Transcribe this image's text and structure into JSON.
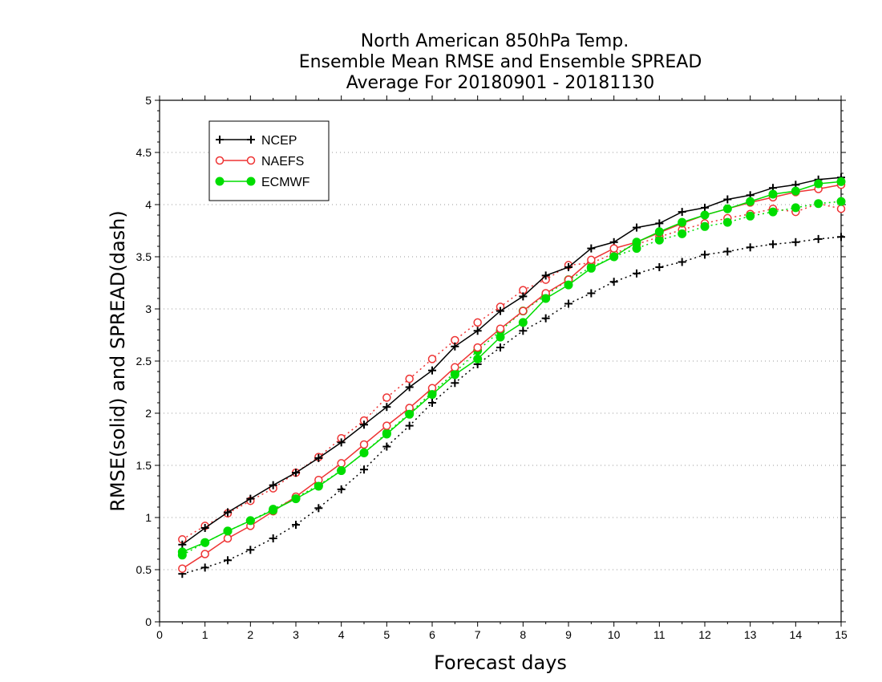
{
  "chart_data": {
    "type": "line",
    "title_lines": [
      "North American 850hPa Temp.",
      "Ensemble Mean RMSE and Ensemble SPREAD",
      "Average For 20180901 - 20181130"
    ],
    "xlabel": "Forecast days",
    "ylabel": "RMSE(solid) and SPREAD(dash)",
    "xlim": [
      0,
      15
    ],
    "ylim": [
      0,
      5
    ],
    "x_ticks": [
      "0",
      "1",
      "2",
      "3",
      "4",
      "5",
      "6",
      "7",
      "8",
      "9",
      "10",
      "11",
      "12",
      "13",
      "14",
      "15"
    ],
    "y_ticks": [
      "0",
      "0.5",
      "1",
      "1.5",
      "2",
      "2.5",
      "3",
      "3.5",
      "4",
      "4.5",
      "5"
    ],
    "grid": "horizontal dotted",
    "legend_position": "top-left",
    "x": [
      0.5,
      1,
      1.5,
      2,
      2.5,
      3,
      3.5,
      4,
      4.5,
      5,
      5.5,
      6,
      6.5,
      7,
      7.5,
      8,
      8.5,
      9,
      9.5,
      10,
      10.5,
      11,
      11.5,
      12,
      12.5,
      13,
      13.5,
      14,
      14.5,
      15
    ],
    "series": [
      {
        "name": "NCEP",
        "color": "#000000",
        "marker": "plus",
        "rmse": [
          0.74,
          0.9,
          1.05,
          1.18,
          1.31,
          1.43,
          1.57,
          1.72,
          1.89,
          2.06,
          2.25,
          2.41,
          2.64,
          2.79,
          2.98,
          3.12,
          3.32,
          3.4,
          3.58,
          3.64,
          3.78,
          3.82,
          3.93,
          3.97,
          4.05,
          4.09,
          4.16,
          4.19,
          4.24,
          4.26
        ],
        "spread": [
          0.46,
          0.52,
          0.59,
          0.69,
          0.8,
          0.93,
          1.09,
          1.27,
          1.46,
          1.68,
          1.88,
          2.1,
          2.29,
          2.47,
          2.63,
          2.79,
          2.91,
          3.05,
          3.15,
          3.26,
          3.34,
          3.4,
          3.45,
          3.52,
          3.55,
          3.59,
          3.62,
          3.64,
          3.67,
          3.69
        ]
      },
      {
        "name": "NAEFS",
        "color": "#ee3333",
        "marker": "open-circle",
        "rmse": [
          0.51,
          0.65,
          0.8,
          0.92,
          1.06,
          1.2,
          1.36,
          1.52,
          1.7,
          1.88,
          2.05,
          2.24,
          2.44,
          2.63,
          2.81,
          2.98,
          3.15,
          3.28,
          3.47,
          3.58,
          3.64,
          3.73,
          3.82,
          3.9,
          3.96,
          4.02,
          4.07,
          4.12,
          4.15,
          4.19
        ],
        "spread": [
          0.79,
          0.92,
          1.04,
          1.16,
          1.28,
          1.43,
          1.58,
          1.76,
          1.93,
          2.15,
          2.33,
          2.52,
          2.7,
          2.87,
          3.02,
          3.18,
          3.28,
          3.42,
          3.44,
          3.53,
          3.62,
          3.69,
          3.76,
          3.82,
          3.87,
          3.91,
          3.96,
          3.93,
          4.01,
          3.96
        ]
      },
      {
        "name": "ECMWF",
        "color": "#00dd00",
        "marker": "filled-circle",
        "rmse": [
          0.67,
          0.76,
          0.87,
          0.97,
          1.07,
          1.18,
          1.3,
          1.45,
          1.62,
          1.8,
          1.99,
          2.18,
          2.37,
          2.52,
          2.73,
          2.87,
          3.1,
          3.23,
          3.39,
          3.5,
          3.64,
          3.74,
          3.83,
          3.9,
          3.96,
          4.03,
          4.1,
          4.13,
          4.2,
          4.22
        ],
        "spread": [
          0.64,
          0.76,
          0.87,
          0.97,
          1.08,
          1.19,
          1.31,
          1.45,
          1.62,
          1.81,
          2.0,
          2.2,
          2.39,
          2.6,
          2.79,
          2.98,
          3.13,
          3.28,
          3.4,
          3.5,
          3.58,
          3.66,
          3.72,
          3.79,
          3.83,
          3.89,
          3.93,
          3.97,
          4.01,
          4.03
        ]
      }
    ]
  }
}
